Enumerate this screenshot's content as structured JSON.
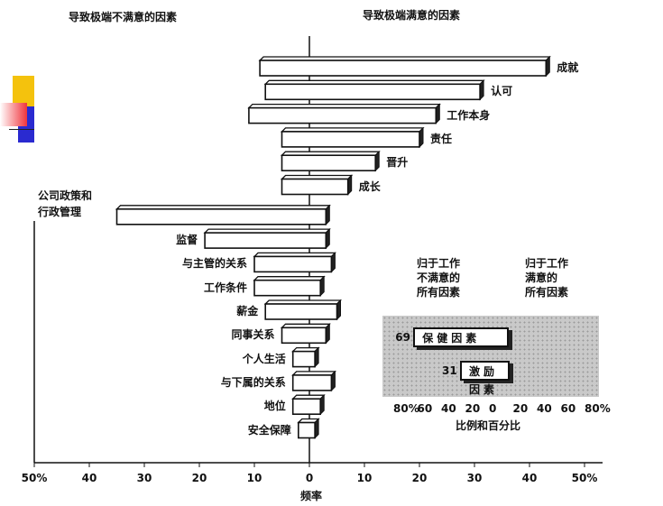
{
  "headers": {
    "left": "导致极端不满意的因素",
    "right": "导致极端满意的因素"
  },
  "chart_data": {
    "type": "bar",
    "orientation": "horizontal-diverging",
    "xlabel": "频率",
    "xlim": [
      -50,
      50
    ],
    "tick_labels": [
      "50%",
      "40",
      "30",
      "20",
      "10",
      "0",
      "10",
      "20",
      "30",
      "40",
      "50%"
    ],
    "rows": [
      {
        "label": "成就",
        "dissatisfied": 9,
        "satisfied": 43,
        "side": "right"
      },
      {
        "label": "认可",
        "dissatisfied": 8,
        "satisfied": 31,
        "side": "right"
      },
      {
        "label": "工作本身",
        "dissatisfied": 11,
        "satisfied": 23,
        "side": "right"
      },
      {
        "label": "责任",
        "dissatisfied": 5,
        "satisfied": 20,
        "side": "right"
      },
      {
        "label": "晋升",
        "dissatisfied": 5,
        "satisfied": 12,
        "side": "right"
      },
      {
        "label": "成长",
        "dissatisfied": 5,
        "satisfied": 7,
        "side": "right"
      },
      {
        "label": "公司政策和\n行政管理",
        "dissatisfied": 35,
        "satisfied": 3,
        "side": "left"
      },
      {
        "label": "监督",
        "dissatisfied": 19,
        "satisfied": 3,
        "side": "left"
      },
      {
        "label": "与主管的关系",
        "dissatisfied": 10,
        "satisfied": 4,
        "side": "left"
      },
      {
        "label": "工作条件",
        "dissatisfied": 10,
        "satisfied": 2,
        "side": "left"
      },
      {
        "label": "薪金",
        "dissatisfied": 8,
        "satisfied": 5,
        "side": "left"
      },
      {
        "label": "同事关系",
        "dissatisfied": 5,
        "satisfied": 3,
        "side": "left"
      },
      {
        "label": "个人生活",
        "dissatisfied": 3,
        "satisfied": 1,
        "side": "left"
      },
      {
        "label": "与下属的关系",
        "dissatisfied": 3,
        "satisfied": 4,
        "side": "left"
      },
      {
        "label": "地位",
        "dissatisfied": 3,
        "satisfied": 2,
        "side": "left"
      },
      {
        "label": "安全保障",
        "dissatisfied": 2,
        "satisfied": 1,
        "side": "left"
      }
    ]
  },
  "inset": {
    "left_label": "归于工作\n不满意的\n所有因素",
    "right_label": "归于工作\n满意的\n所有因素",
    "bars": [
      {
        "label": "保健因素",
        "value": 69,
        "value_text": "69",
        "side": "left"
      },
      {
        "label": "激励因素",
        "value": 31,
        "value_text": "31",
        "side": "right"
      }
    ],
    "ticks": [
      "80%",
      "60",
      "40",
      "20",
      "0",
      "20",
      "40",
      "60",
      "80%"
    ],
    "xlabel": "比例和百分比"
  },
  "colors": {
    "deco_yellow": "#f4c20d",
    "deco_red": "#f0343c",
    "deco_blue": "#2a2ad0"
  }
}
